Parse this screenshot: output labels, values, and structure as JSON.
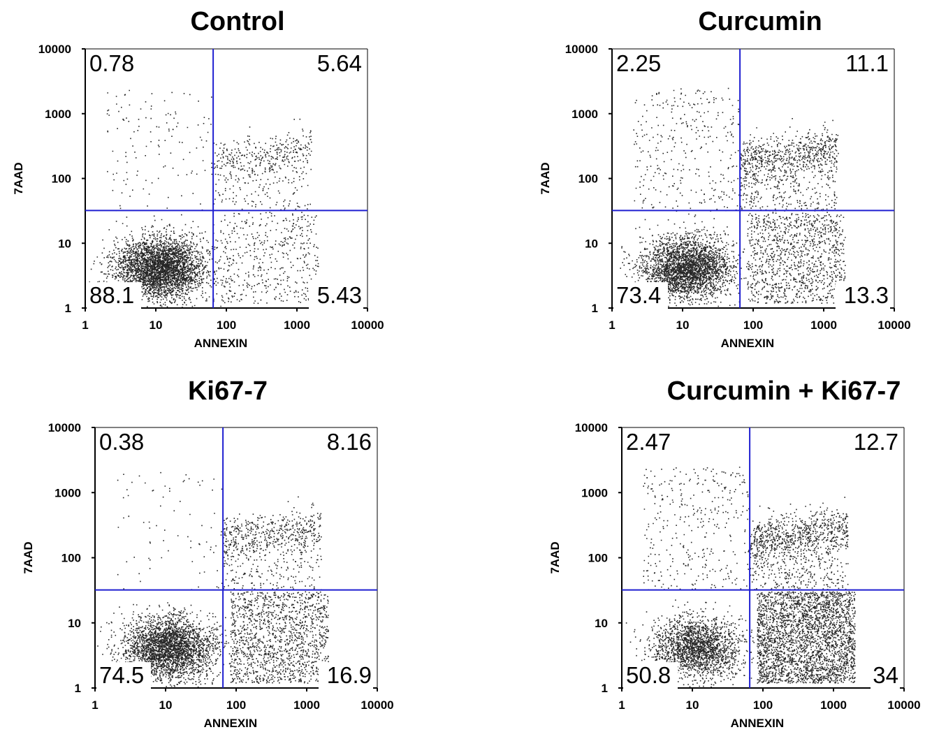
{
  "chart_data": [
    {
      "type": "scatter",
      "title": "Control",
      "xlabel": "ANNEXIN",
      "ylabel": "7AAD",
      "x_scale": "log",
      "y_scale": "log",
      "xlim": [
        1,
        10000
      ],
      "ylim": [
        1,
        10000
      ],
      "xticks": [
        "1",
        "10",
        "100",
        "1000",
        "10000"
      ],
      "yticks": [
        "1",
        "10",
        "100",
        "1000",
        "10000"
      ],
      "gate_x": 65,
      "gate_y": 32,
      "gate_color": "#1f1fd1",
      "quadrants": {
        "upper_left": "0.78",
        "upper_right": "5.64",
        "lower_left": "88.1",
        "lower_right": "5.43"
      }
    },
    {
      "type": "scatter",
      "title": "Curcumin",
      "xlabel": "ANNEXIN",
      "ylabel": "7AAD",
      "x_scale": "log",
      "y_scale": "log",
      "xlim": [
        1,
        10000
      ],
      "ylim": [
        1,
        10000
      ],
      "xticks": [
        "1",
        "10",
        "100",
        "1000",
        "10000"
      ],
      "yticks": [
        "1",
        "10",
        "100",
        "1000",
        "10000"
      ],
      "gate_x": 65,
      "gate_y": 32,
      "gate_color": "#1f1fd1",
      "quadrants": {
        "upper_left": "2.25",
        "upper_right": "11.1",
        "lower_left": "73.4",
        "lower_right": "13.3"
      }
    },
    {
      "type": "scatter",
      "title": "Ki67-7",
      "xlabel": "ANNEXIN",
      "ylabel": "7AAD",
      "x_scale": "log",
      "y_scale": "log",
      "xlim": [
        1,
        10000
      ],
      "ylim": [
        1,
        10000
      ],
      "xticks": [
        "1",
        "10",
        "100",
        "1000",
        "10000"
      ],
      "yticks": [
        "1",
        "10",
        "100",
        "1000",
        "10000"
      ],
      "gate_x": 65,
      "gate_y": 32,
      "gate_color": "#1f1fd1",
      "quadrants": {
        "upper_left": "0.38",
        "upper_right": "8.16",
        "lower_left": "74.5",
        "lower_right": "16.9"
      }
    },
    {
      "type": "scatter",
      "title": "Curcumin + Ki67-7",
      "xlabel": "ANNEXIN",
      "ylabel": "7AAD",
      "x_scale": "log",
      "y_scale": "log",
      "xlim": [
        1,
        10000
      ],
      "ylim": [
        1,
        10000
      ],
      "xticks": [
        "1",
        "10",
        "100",
        "1000",
        "10000"
      ],
      "yticks": [
        "1",
        "10",
        "100",
        "1000",
        "10000"
      ],
      "gate_x": 65,
      "gate_y": 32,
      "gate_color": "#1f1fd1",
      "quadrants": {
        "upper_left": "2.47",
        "upper_right": "12.7",
        "lower_left": "50.8",
        "lower_right": "34"
      }
    }
  ]
}
